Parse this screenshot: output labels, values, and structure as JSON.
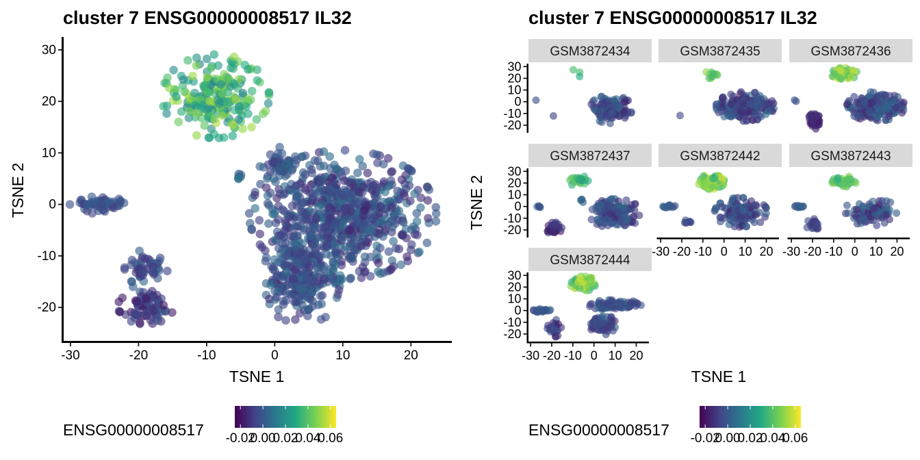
{
  "left_panel": {
    "title": "cluster 7 ENSG00000008517 IL32",
    "xlabel": "TSNE 1",
    "ylabel": "TSNE 2",
    "x_ticks": [
      "-30",
      "-20",
      "-10",
      "0",
      "10",
      "20"
    ],
    "y_ticks": [
      "-20",
      "-10",
      "0",
      "10",
      "20",
      "30"
    ]
  },
  "right_panel": {
    "title": "cluster 7 ENSG00000008517 IL32",
    "xlabel": "TSNE 1",
    "ylabel": "TSNE 2",
    "x_ticks": [
      "-30",
      "-20",
      "-10",
      "0",
      "10",
      "20"
    ],
    "y_ticks": [
      "-20",
      "-10",
      "0",
      "10",
      "20",
      "30"
    ],
    "facets": [
      "GSM3872434",
      "GSM3872435",
      "GSM3872436",
      "GSM3872437",
      "GSM3872442",
      "GSM3872443",
      "GSM3872444"
    ]
  },
  "legend": {
    "title": "ENSG00000008517",
    "tick_labels": [
      "-0.02",
      "0.00",
      "0.02",
      "0.04",
      "0.06"
    ],
    "colors": [
      "#440154",
      "#414487",
      "#2a788e",
      "#22a884",
      "#7ad151",
      "#fde725"
    ]
  },
  "chart_data": [
    {
      "type": "scatter",
      "title": "cluster 7 ENSG00000008517 IL32",
      "xlabel": "TSNE 1",
      "ylabel": "TSNE 2",
      "xlim": [
        -31,
        26
      ],
      "ylim": [
        -26.5,
        32.5
      ],
      "color_variable": "ENSG00000008517",
      "color_range": [
        -0.025,
        0.065
      ],
      "clusters": [
        {
          "name": "top",
          "cx": -8.7,
          "cy": 21,
          "rx": 6.3,
          "ry": 6.5,
          "value_range": [
            0.015,
            0.055
          ],
          "n": 220
        },
        {
          "name": "left",
          "cx": -26.2,
          "cy": 0,
          "rx": 3.3,
          "ry": 1.4,
          "value_range": [
            -0.01,
            0.005
          ],
          "n": 60
        },
        {
          "name": "lower-left-upper",
          "cx": -19.5,
          "cy": -12.5,
          "rx": 3,
          "ry": 3,
          "value_range": [
            -0.012,
            0.005
          ],
          "n": 50
        },
        {
          "name": "lower-left-lower",
          "cx": -19,
          "cy": -20,
          "rx": 3.3,
          "ry": 2.6,
          "value_range": [
            -0.02,
            0.0
          ],
          "n": 80
        },
        {
          "name": "small",
          "cx": -5.3,
          "cy": 5.7,
          "rx": 0.4,
          "ry": 1,
          "value_range": [
            0.0,
            0.01
          ],
          "n": 6
        },
        {
          "name": "top-right-small",
          "cx": 0.5,
          "cy": 8,
          "rx": 2.2,
          "ry": 2.5,
          "value_range": [
            -0.012,
            0.006
          ],
          "n": 50
        },
        {
          "name": "main",
          "cx": 10,
          "cy": -2,
          "rx": 11,
          "ry": 10,
          "value_range": [
            -0.015,
            0.008
          ],
          "n": 700
        },
        {
          "name": "main-lower",
          "cx": 4,
          "cy": -14,
          "rx": 4.5,
          "ry": 8,
          "value_range": [
            -0.012,
            0.008
          ],
          "n": 260
        }
      ]
    },
    {
      "type": "scatter",
      "facet": "GSM3872434",
      "xlim": [
        -31,
        26
      ],
      "ylim": [
        -26.5,
        32.5
      ],
      "clusters": [
        {
          "name": "top",
          "cx": -7,
          "cy": 24,
          "rx": 3,
          "ry": 4,
          "value_range": [
            0.03,
            0.05
          ],
          "n": 3
        },
        {
          "name": "left",
          "cx": -28,
          "cy": 1,
          "rx": 0.5,
          "ry": 0.5,
          "value_range": [
            -0.005,
            0.0
          ],
          "n": 1
        },
        {
          "name": "lower-left",
          "cx": -19,
          "cy": -12,
          "rx": 0.5,
          "ry": 0.5,
          "value_range": [
            -0.01,
            -0.005
          ],
          "n": 1
        },
        {
          "name": "main",
          "cx": 8,
          "cy": -6,
          "rx": 8,
          "ry": 10,
          "value_range": [
            -0.015,
            0.006
          ],
          "n": 140
        }
      ]
    },
    {
      "type": "scatter",
      "facet": "GSM3872435",
      "xlim": [
        -31,
        26
      ],
      "ylim": [
        -26.5,
        32.5
      ],
      "clusters": [
        {
          "name": "top",
          "cx": -6,
          "cy": 23,
          "rx": 3,
          "ry": 2.5,
          "value_range": [
            0.03,
            0.05
          ],
          "n": 12
        },
        {
          "name": "left",
          "cx": -21,
          "cy": -12,
          "rx": 0.5,
          "ry": 0.5,
          "value_range": [
            -0.01,
            0.0
          ],
          "n": 1
        },
        {
          "name": "main",
          "cx": 10,
          "cy": -4,
          "rx": 11,
          "ry": 10,
          "value_range": [
            -0.015,
            0.006
          ],
          "n": 220
        }
      ]
    },
    {
      "type": "scatter",
      "facet": "GSM3872436",
      "xlim": [
        -31,
        26
      ],
      "ylim": [
        -26.5,
        32.5
      ],
      "clusters": [
        {
          "name": "top",
          "cx": -5,
          "cy": 24,
          "rx": 5,
          "ry": 4,
          "value_range": [
            0.035,
            0.06
          ],
          "n": 70
        },
        {
          "name": "left",
          "cx": -28,
          "cy": 1,
          "rx": 1,
          "ry": 0.6,
          "value_range": [
            -0.005,
            0.0
          ],
          "n": 2
        },
        {
          "name": "lower-left",
          "cx": -19,
          "cy": -17,
          "rx": 2.5,
          "ry": 6,
          "value_range": [
            -0.02,
            -0.005
          ],
          "n": 40
        },
        {
          "name": "main",
          "cx": 10,
          "cy": -4,
          "rx": 11,
          "ry": 10,
          "value_range": [
            -0.015,
            0.006
          ],
          "n": 220
        }
      ]
    },
    {
      "type": "scatter",
      "facet": "GSM3872437",
      "xlim": [
        -31,
        26
      ],
      "ylim": [
        -26.5,
        32.5
      ],
      "clusters": [
        {
          "name": "top",
          "cx": -7,
          "cy": 22,
          "rx": 4,
          "ry": 4,
          "value_range": [
            0.02,
            0.05
          ],
          "n": 25
        },
        {
          "name": "left",
          "cx": -27,
          "cy": 0,
          "rx": 1.5,
          "ry": 1,
          "value_range": [
            -0.005,
            0.005
          ],
          "n": 5
        },
        {
          "name": "lower-left",
          "cx": -19,
          "cy": -18,
          "rx": 3,
          "ry": 5,
          "value_range": [
            -0.02,
            -0.005
          ],
          "n": 40
        },
        {
          "name": "small",
          "cx": -6,
          "cy": 5,
          "rx": 1,
          "ry": 1.5,
          "value_range": [
            0.0,
            0.01
          ],
          "n": 4
        },
        {
          "name": "main",
          "cx": 10,
          "cy": -6,
          "rx": 10,
          "ry": 10,
          "value_range": [
            -0.015,
            0.006
          ],
          "n": 160
        }
      ]
    },
    {
      "type": "scatter",
      "facet": "GSM3872442",
      "xlim": [
        -31,
        26
      ],
      "ylim": [
        -26.5,
        32.5
      ],
      "clusters": [
        {
          "name": "top",
          "cx": -6,
          "cy": 21,
          "rx": 5,
          "ry": 5,
          "value_range": [
            0.03,
            0.06
          ],
          "n": 80
        },
        {
          "name": "left",
          "cx": -26,
          "cy": 0,
          "rx": 2.5,
          "ry": 1,
          "value_range": [
            -0.005,
            0.005
          ],
          "n": 12
        },
        {
          "name": "lower-left",
          "cx": -18,
          "cy": -13,
          "rx": 2.5,
          "ry": 2,
          "value_range": [
            -0.01,
            0.0
          ],
          "n": 8
        },
        {
          "name": "main",
          "cx": 8,
          "cy": -5,
          "rx": 10,
          "ry": 10,
          "value_range": [
            -0.015,
            0.006
          ],
          "n": 130
        }
      ]
    },
    {
      "type": "scatter",
      "facet": "GSM3872443",
      "xlim": [
        -31,
        26
      ],
      "ylim": [
        -26.5,
        32.5
      ],
      "clusters": [
        {
          "name": "top",
          "cx": -5,
          "cy": 21,
          "rx": 4.5,
          "ry": 4,
          "value_range": [
            0.03,
            0.05
          ],
          "n": 50
        },
        {
          "name": "left",
          "cx": -26,
          "cy": 0,
          "rx": 2.5,
          "ry": 1,
          "value_range": [
            -0.005,
            0.005
          ],
          "n": 10
        },
        {
          "name": "lower-left",
          "cx": -19,
          "cy": -16,
          "rx": 3,
          "ry": 5,
          "value_range": [
            -0.015,
            0.0
          ],
          "n": 20
        },
        {
          "name": "main",
          "cx": 8,
          "cy": -5,
          "rx": 11,
          "ry": 9,
          "value_range": [
            -0.015,
            0.008
          ],
          "n": 90
        }
      ]
    },
    {
      "type": "scatter",
      "facet": "GSM3872444",
      "xlim": [
        -31,
        26
      ],
      "ylim": [
        -26.5,
        32.5
      ],
      "clusters": [
        {
          "name": "top",
          "cx": -5,
          "cy": 23,
          "rx": 5,
          "ry": 5,
          "value_range": [
            0.03,
            0.06
          ],
          "n": 80
        },
        {
          "name": "left",
          "cx": -25,
          "cy": 0,
          "rx": 4,
          "ry": 1,
          "value_range": [
            -0.005,
            0.005
          ],
          "n": 20
        },
        {
          "name": "lower-left",
          "cx": -19,
          "cy": -15,
          "rx": 3,
          "ry": 6,
          "value_range": [
            -0.02,
            0.0
          ],
          "n": 30
        },
        {
          "name": "main",
          "cx": 10,
          "cy": 5,
          "rx": 10,
          "ry": 4,
          "value_range": [
            -0.01,
            0.006
          ],
          "n": 100
        },
        {
          "name": "main-lower",
          "cx": 4,
          "cy": -12,
          "rx": 5,
          "ry": 7,
          "value_range": [
            -0.015,
            0.005
          ],
          "n": 80
        }
      ]
    }
  ]
}
